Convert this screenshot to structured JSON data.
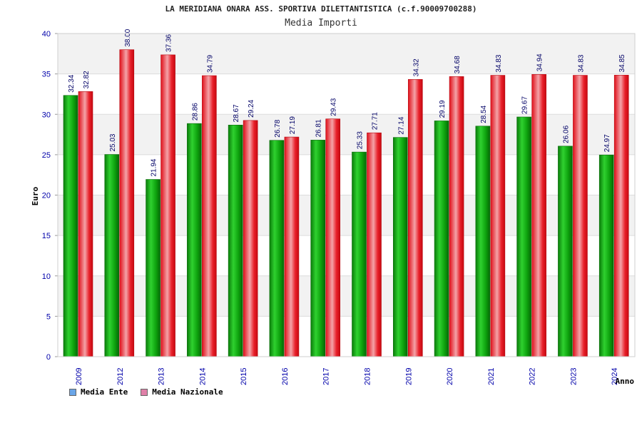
{
  "chart_data": {
    "type": "bar",
    "title": "LA MERIDIANA ONARA ASS. SPORTIVA DILETTANTISTICA (c.f.90009700288)",
    "subtitle": "Media Importi",
    "xlabel": "Anno",
    "ylabel": "Euro",
    "ylim": [
      0,
      40
    ],
    "yticks": [
      "0",
      "5",
      "10",
      "15",
      "20",
      "25",
      "30",
      "35",
      "40"
    ],
    "categories": [
      "2009",
      "2012",
      "2013",
      "2014",
      "2015",
      "2016",
      "2017",
      "2018",
      "2019",
      "2020",
      "2021",
      "2022",
      "2023",
      "2024"
    ],
    "series": [
      {
        "name": "Media Ente",
        "legend_color": "#6aa6e8",
        "bar_color": "#12b012",
        "values": [
          32.34,
          25.03,
          21.94,
          28.86,
          28.67,
          26.78,
          26.81,
          25.33,
          27.14,
          29.19,
          28.54,
          29.67,
          26.06,
          24.97
        ],
        "labels": [
          "32.34",
          "25.03",
          "21.94",
          "28.86",
          "28.67",
          "26.78",
          "26.81",
          "25.33",
          "27.14",
          "29.19",
          "28.54",
          "29.67",
          "26.06",
          "24.97"
        ]
      },
      {
        "name": "Media Nazionale",
        "legend_color": "#e080a8",
        "bar_color": "#e8121e",
        "values": [
          32.82,
          38.0,
          37.36,
          34.79,
          29.24,
          27.19,
          29.43,
          27.71,
          34.32,
          34.68,
          34.83,
          34.94,
          34.83,
          34.85
        ],
        "labels": [
          "32.82",
          "38.00",
          "37.36",
          "34.79",
          "29.24",
          "27.19",
          "29.43",
          "27.71",
          "34.32",
          "34.68",
          "34.83",
          "34.94",
          "34.83",
          "34.85"
        ]
      }
    ],
    "grid": true,
    "legend_position": "bottom-left"
  }
}
